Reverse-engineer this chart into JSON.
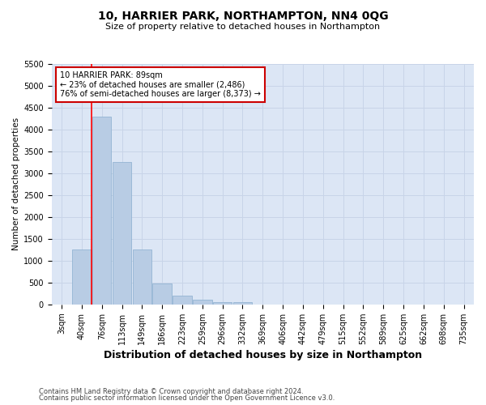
{
  "title": "10, HARRIER PARK, NORTHAMPTON, NN4 0QG",
  "subtitle": "Size of property relative to detached houses in Northampton",
  "xlabel": "Distribution of detached houses by size in Northampton",
  "ylabel": "Number of detached properties",
  "footer_line1": "Contains HM Land Registry data © Crown copyright and database right 2024.",
  "footer_line2": "Contains public sector information licensed under the Open Government Licence v3.0.",
  "categories": [
    "3sqm",
    "40sqm",
    "76sqm",
    "113sqm",
    "149sqm",
    "186sqm",
    "223sqm",
    "259sqm",
    "296sqm",
    "332sqm",
    "369sqm",
    "406sqm",
    "442sqm",
    "479sqm",
    "515sqm",
    "552sqm",
    "589sqm",
    "625sqm",
    "662sqm",
    "698sqm",
    "735sqm"
  ],
  "values": [
    0,
    1250,
    4300,
    3250,
    1250,
    480,
    200,
    100,
    60,
    50,
    0,
    0,
    0,
    0,
    0,
    0,
    0,
    0,
    0,
    0,
    0
  ],
  "bar_color": "#b8cce4",
  "bar_edgecolor": "#89aece",
  "ylim": [
    0,
    5500
  ],
  "yticks": [
    0,
    500,
    1000,
    1500,
    2000,
    2500,
    3000,
    3500,
    4000,
    4500,
    5000,
    5500
  ],
  "property_line_x": 1.5,
  "annotation_text": "10 HARRIER PARK: 89sqm\n← 23% of detached houses are smaller (2,486)\n76% of semi-detached houses are larger (8,373) →",
  "annotation_box_color": "#cc0000",
  "annotation_bg": "white",
  "grid_color": "#c8d4e8",
  "background_color": "#dce6f5",
  "title_fontsize": 10,
  "subtitle_fontsize": 8,
  "xlabel_fontsize": 9,
  "ylabel_fontsize": 7.5,
  "tick_fontsize": 7,
  "annotation_fontsize": 7,
  "footer_fontsize": 6
}
